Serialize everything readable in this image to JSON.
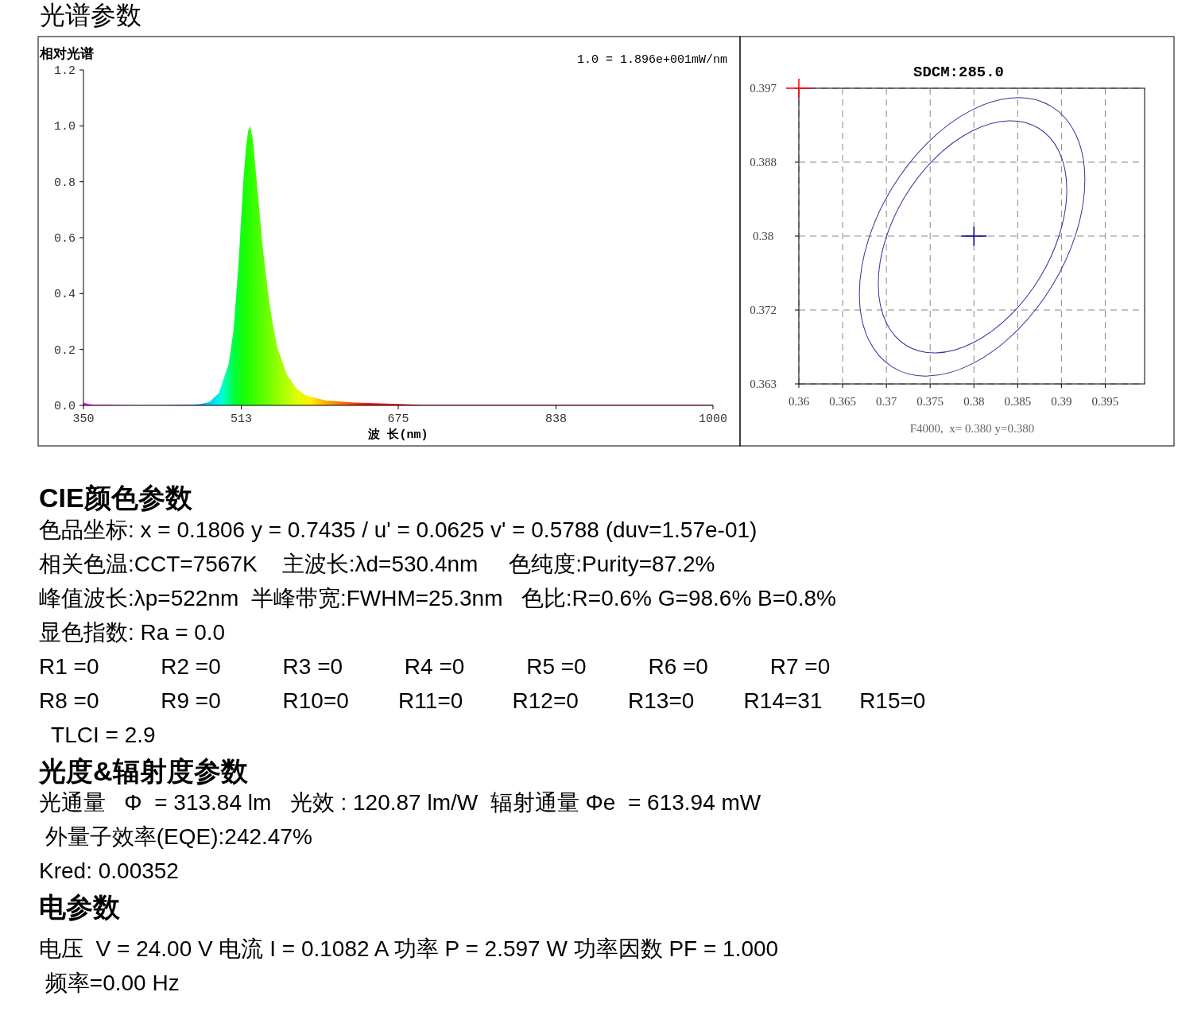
{
  "chart_data": [
    {
      "type": "area",
      "title": "光谱参数",
      "ylabel": "相对光谱",
      "xlabel": "波 长(nm)",
      "annotations": [
        "1.0 = 1.896e+001mW/nm"
      ],
      "x": [
        350,
        355,
        360,
        380,
        400,
        430,
        460,
        470,
        480,
        490,
        500,
        505,
        510,
        515,
        518,
        520,
        522,
        525,
        530,
        535,
        540,
        545,
        550,
        560,
        570,
        580,
        600,
        630,
        675,
        700,
        800,
        900,
        1000
      ],
      "values": [
        0.01,
        0.005,
        0.003,
        0.002,
        0.001,
        0.001,
        0.002,
        0.004,
        0.012,
        0.045,
        0.15,
        0.27,
        0.5,
        0.8,
        0.93,
        0.98,
        1.0,
        0.95,
        0.76,
        0.57,
        0.42,
        0.3,
        0.21,
        0.11,
        0.06,
        0.035,
        0.018,
        0.01,
        0.005,
        0.002,
        0.002,
        0.002,
        0.002
      ],
      "xlim": [
        350,
        1000
      ],
      "xticks": [
        350,
        513,
        675,
        838,
        1000
      ],
      "ylim": [
        0,
        1.2
      ],
      "yticks": [
        {
          "value": 0,
          "label": "0.0"
        },
        0.2,
        0.4,
        0.6,
        0.8,
        {
          "value": 1,
          "label": "1.0"
        },
        1.2
      ]
    },
    {
      "type": "scatter",
      "title": "SDCM:285.0",
      "annotations": [
        "F4000,  x= 0.380 y=0.380"
      ],
      "grid": true,
      "xlim": [
        0.36,
        0.3995
      ],
      "ylim": [
        0.363,
        0.397
      ],
      "xticks": [
        0.36,
        0.365,
        0.37,
        0.375,
        0.38,
        0.385,
        0.39,
        0.395
      ],
      "yticks": [
        0.363,
        {
          "value": 0.3715,
          "label": "0.372"
        },
        0.38,
        {
          "value": 0.3885,
          "label": "0.388"
        },
        0.397
      ],
      "series": [
        {
          "type": "scatter",
          "marker": "cross",
          "x": [
            0.36,
            0.38
          ],
          "values": [
            0.397,
            0.38
          ],
          "colors": [
            "#ff0000",
            "#000080"
          ]
        }
      ]
    },
    {
      "type": "other",
      "title": "CIE颜色参数",
      "annotations": [
        "色品坐标: x = 0.1806 y = 0.7435 / u' = 0.0625 v' = 0.5788 (duv=1.57e-01)",
        "相关色温:CCT=7567K    主波长:λd=530.4nm     色纯度:Purity=87.2%",
        "峰值波长:λp=522nm  半峰带宽:FWHM=25.3nm   色比:R=0.6% G=98.6% B=0.8%",
        "显色指数: Ra = 0.0",
        "R1 =0          R2 =0          R3 =0          R4 =0          R5 =0          R6 =0          R7 =0",
        "R8 =0          R9 =0          R10=0        R11=0        R12=0        R13=0        R14=31      R15=0",
        "  TLCI = 2.9"
      ]
    },
    {
      "type": "other",
      "title": "光度&辐射度参数",
      "annotations": [
        "光通量   Φ  = 313.84 lm   光效 : 120.87 lm/W  辐射通量 Φe  = 613.94 mW",
        " 外量子效率(EQE):242.47%",
        "Kred: 0.00352"
      ]
    },
    {
      "type": "other",
      "title": "电参数",
      "annotations": [
        "电压  V = 24.00 V 电流 I = 0.1082 A 功率 P = 2.597 W 功率因数 PF = 1.000",
        " 频率=0.00 Hz"
      ]
    }
  ]
}
